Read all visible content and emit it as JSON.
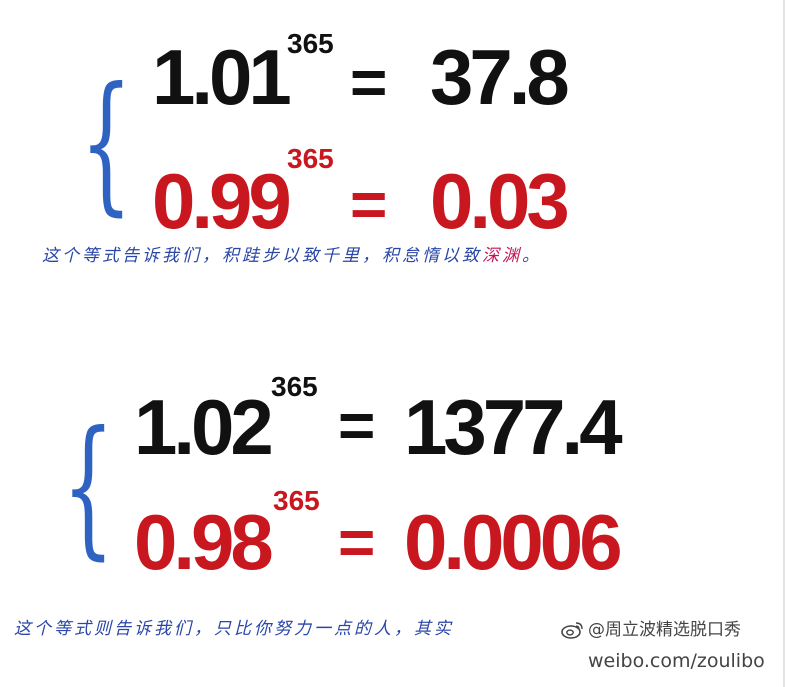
{
  "colors": {
    "black": "#111111",
    "red": "#c8171e",
    "blue": "#2f63c2",
    "handwriting": "#2a46a8",
    "handwriting_red": "#c2185b",
    "watermark": "#444444"
  },
  "group1": {
    "line1": {
      "base": "1.01",
      "exponent": "365",
      "equals": "=",
      "result": "37.8"
    },
    "line2": {
      "base": "0.99",
      "exponent": "365",
      "equals": "=",
      "result": "0.03"
    },
    "note": {
      "text": "这个等式告诉我们，积跬步以致千里，积怠惰以致",
      "highlight": "深渊",
      "end": "。"
    }
  },
  "group2": {
    "line1": {
      "base": "1.02",
      "exponent": "365",
      "equals": "=",
      "result": "1377.4"
    },
    "line2": {
      "base": "0.98",
      "exponent": "365",
      "equals": "=",
      "result": "0.0006"
    },
    "note": {
      "text": "这个等式则告诉我们，只比你努力一点的人，其实"
    }
  },
  "watermark": {
    "icon": "weibo-icon",
    "handle": "@周立波精选脱口秀",
    "url": "weibo.com/zoulibo"
  }
}
